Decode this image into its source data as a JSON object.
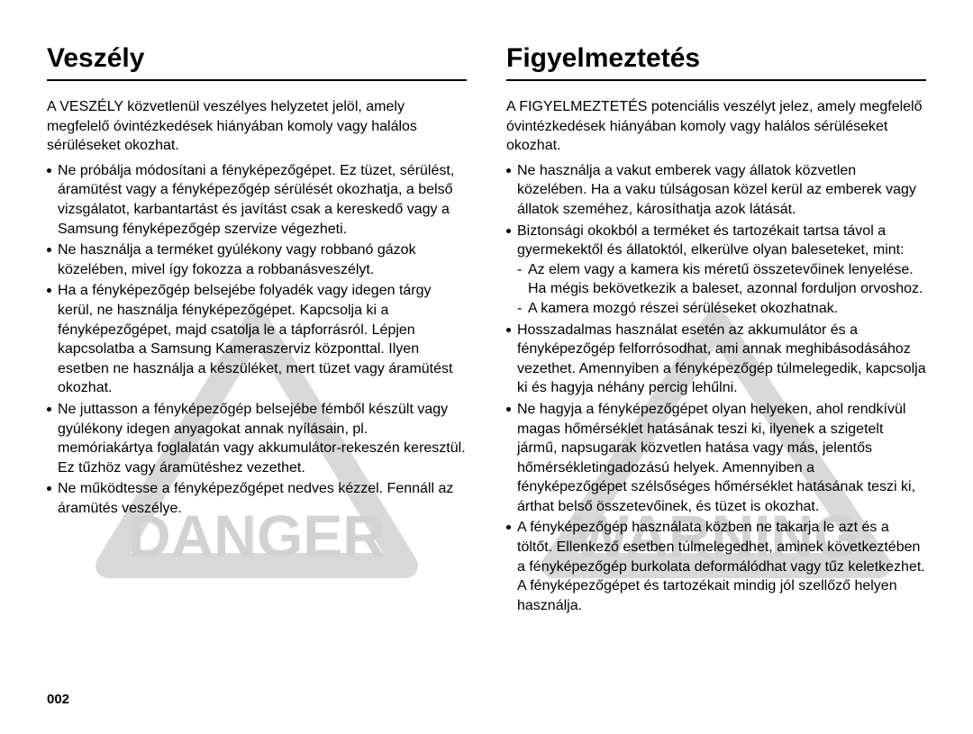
{
  "page_number": "002",
  "watermark": {
    "left_text": "DANGER",
    "right_text": "WARNING",
    "triangle_stroke": "#d9d9d9",
    "text_fill": "#d2d2d2",
    "font_family": "Arial, Helvetica, sans-serif",
    "font_weight": "700"
  },
  "left": {
    "heading": "Veszély",
    "lead": "A VESZÉLY közvetlenül veszélyes helyzetet jelöl, amely megfelelő óvintézkedések hiányában komoly vagy halálos sérüléseket okozhat.",
    "bullets": [
      {
        "text": "Ne próbálja módosítani a fényképezőgépet. Ez tüzet, sérülést, áramütést vagy a fényképezőgép sérülését okozhatja, a belső vizsgálatot, karbantartást és javítást csak a kereskedő vagy a Samsung fényképezőgép szervize végezheti."
      },
      {
        "text": "Ne használja a terméket gyúlékony vagy robbanó gázok közelében, mivel így fokozza a robbanásveszélyt."
      },
      {
        "text": "Ha a fényképezőgép belsejébe folyadék vagy idegen tárgy kerül, ne használja fényképezőgépet. Kapcsolja ki a fényképezőgépet, majd csatolja le a tápforrásról. Lépjen kapcsolatba a Samsung Kameraszerviz központtal. Ilyen esetben ne használja a készüléket, mert tüzet vagy áramütést okozhat."
      },
      {
        "text": "Ne juttasson a fényképezőgép belsejébe fémből készült vagy gyúlékony idegen anyagokat annak nyílásain, pl. memóriakártya foglalatán vagy akkumulátor-rekeszén keresztül. Ez tűzhöz vagy áramütéshez vezethet."
      },
      {
        "text": "Ne működtesse a fényképezőgépet nedves kézzel. Fennáll az áramütés veszélye."
      }
    ]
  },
  "right": {
    "heading": "Figyelmeztetés",
    "lead": "A FIGYELMEZTETÉS potenciális veszélyt jelez, amely megfelelő óvintézkedések hiányában komoly vagy halálos sérüléseket okozhat.",
    "bullets": [
      {
        "text": "Ne használja a vakut emberek vagy állatok közvetlen közelében. Ha a vaku túlságosan közel kerül az emberek vagy állatok szeméhez, károsíthatja azok látását."
      },
      {
        "text": "Biztonsági okokból a terméket és tartozékait tartsa távol a gyermekektől és állatoktól, elkerülve olyan baleseteket, mint:",
        "sub": [
          "Az elem vagy a kamera kis méretű összetevőinek lenyelése. Ha mégis bekövetkezik a baleset, azonnal forduljon orvoshoz.",
          "A kamera mozgó részei sérüléseket okozhatnak."
        ]
      },
      {
        "text": "Hosszadalmas használat esetén az akkumulátor és a fényképezőgép felforrósodhat, ami annak meghibásodásához vezethet. Amennyiben a fényképezőgép túlmelegedik, kapcsolja ki és hagyja néhány percig lehűlni."
      },
      {
        "text": "Ne hagyja a fényképezőgépet olyan helyeken, ahol rendkívül magas hőmérséklet hatásának teszi ki, ilyenek a szigetelt jármű, napsugarak közvetlen hatása vagy más, jelentős hőmérsékletingadozású helyek. Amennyiben a fényképezőgépet szélsőséges hőmérséklet hatásának teszi ki, árthat belső összetevőinek, és tüzet is okozhat."
      },
      {
        "text": "A fényképezőgép használata közben ne takarja le azt és a töltőt. Ellenkező esetben túlmelegedhet, aminek következtében a fényképezőgép burkolata deformálódhat vagy tűz keletkezhet. A fényképezőgépet és tartozékait mindig jól szellőző helyen használja."
      }
    ]
  },
  "style": {
    "background": "#ffffff",
    "text_color": "#000000",
    "heading_fontsize": 30,
    "body_fontsize": 16,
    "rule_color": "#000000"
  }
}
